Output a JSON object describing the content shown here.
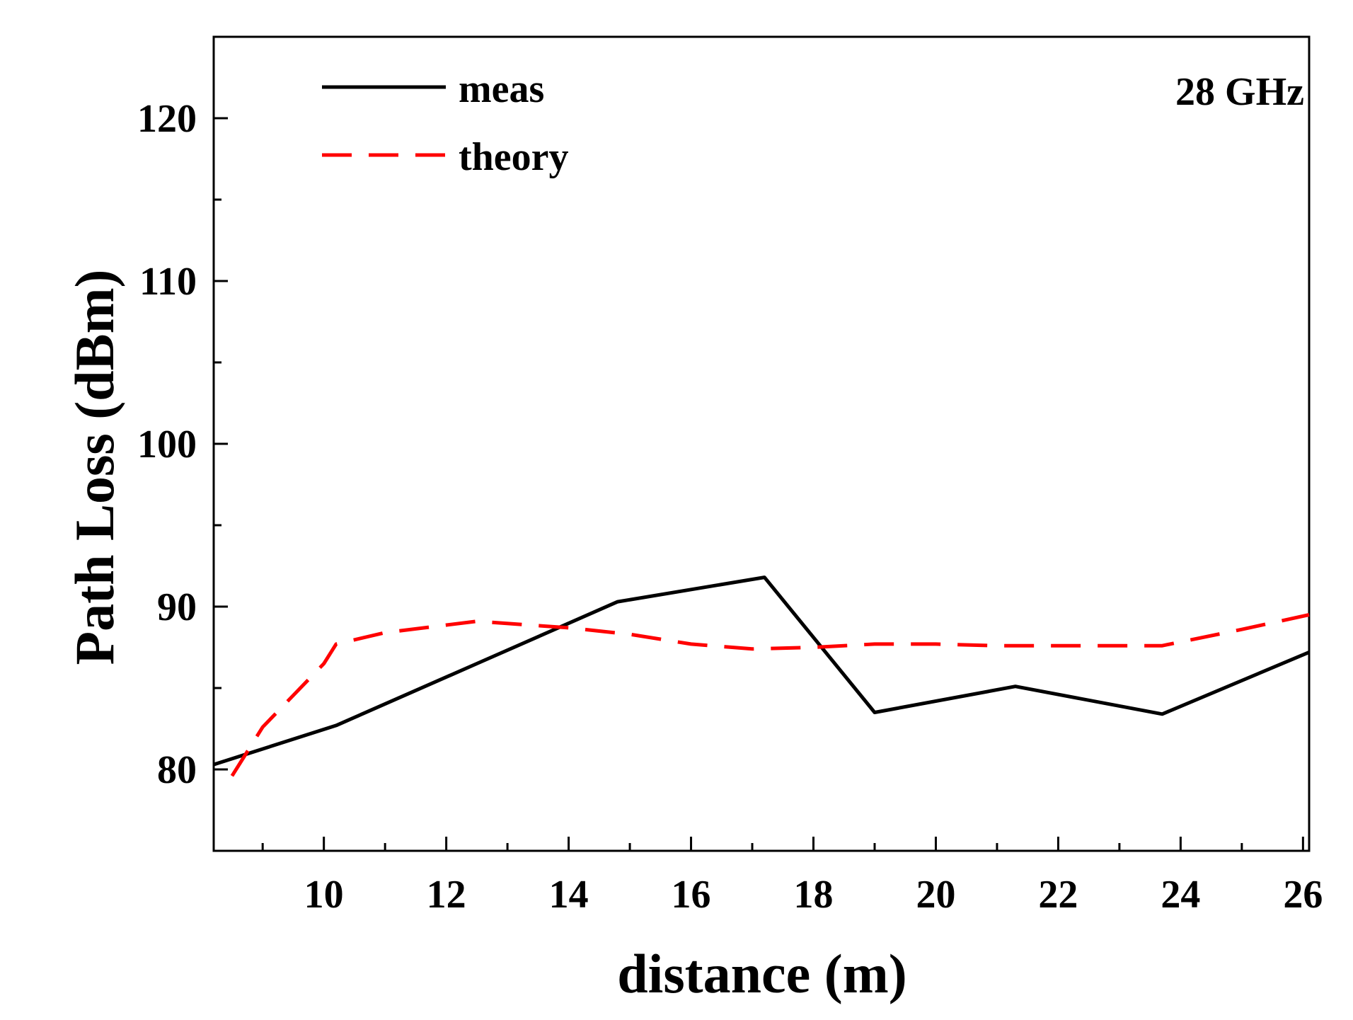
{
  "chart_data": {
    "type": "line",
    "title": "",
    "annotation": "28 GHz",
    "xlabel": "distance (m)",
    "ylabel": "Path Loss (dBm)",
    "xlim": [
      8.2,
      26.1
    ],
    "ylim": [
      75,
      125
    ],
    "x_ticks": [
      10,
      12,
      14,
      16,
      18,
      20,
      22,
      24,
      26
    ],
    "x_tick_labels": [
      "10",
      "12",
      "14",
      "16",
      "18",
      "20",
      "22",
      "24",
      "26"
    ],
    "x_minor_ticks": [
      9,
      11,
      13,
      15,
      17,
      19,
      21,
      23,
      25
    ],
    "y_ticks": [
      80,
      90,
      100,
      110,
      120
    ],
    "y_tick_labels": [
      "80",
      "90",
      "100",
      "110",
      "120"
    ],
    "y_minor_ticks": [
      85,
      95,
      105,
      115
    ],
    "grid": false,
    "legend_position": "top-left",
    "series": [
      {
        "name": "meas",
        "color": "#000000",
        "style": "solid",
        "x": [
          8.2,
          10.2,
          12.5,
          14.8,
          17.2,
          19.0,
          21.3,
          23.7,
          26.1
        ],
        "y": [
          80.3,
          82.7,
          86.5,
          90.3,
          91.8,
          83.5,
          85.1,
          83.4,
          87.2
        ]
      },
      {
        "name": "theory",
        "color": "#ff0000",
        "style": "dashed",
        "x": [
          8.5,
          9.0,
          10.0,
          10.2,
          11.0,
          12.5,
          14.0,
          15.0,
          16.0,
          17.0,
          18.0,
          19.0,
          20.0,
          21.0,
          22.0,
          23.0,
          23.7,
          25.0,
          26.1
        ],
        "y": [
          79.6,
          82.6,
          86.5,
          87.7,
          88.4,
          89.1,
          88.7,
          88.3,
          87.7,
          87.4,
          87.5,
          87.7,
          87.7,
          87.6,
          87.6,
          87.6,
          87.6,
          88.6,
          89.5
        ]
      }
    ]
  }
}
